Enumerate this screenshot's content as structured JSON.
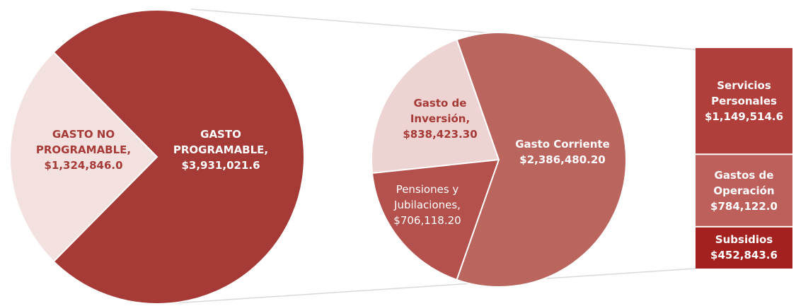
{
  "chart_data": [
    {
      "type": "pie",
      "categories": [
        "GASTO NO PROGRAMABLE,",
        "GASTO PROGRAMABLE,"
      ],
      "values": [
        1324846.0,
        3931021.6
      ],
      "value_labels": [
        "$1,324,846.0",
        "$3,931,021.6"
      ],
      "colors": [
        "#f3e1e0",
        "#a53a36"
      ]
    },
    {
      "type": "pie",
      "categories": [
        "Gasto de Inversión,",
        "Pensiones y Jubilaciones,",
        "Gasto Corriente"
      ],
      "values": [
        838423.3,
        706118.2,
        2386480.2
      ],
      "value_labels": [
        "$838,423.30",
        "$706,118.20",
        "$2,386,480.20"
      ],
      "colors": [
        "#edd3d1",
        "#b5514d",
        "#bb655f"
      ]
    },
    {
      "type": "bar",
      "stacked": true,
      "categories": [
        "Servicios Personales",
        "Gastos de Operación",
        "Subsidios"
      ],
      "values": [
        1149514.6,
        784122.0,
        452843.6
      ],
      "value_labels": [
        "$1,149,514.6",
        "$784,122.0",
        "$452,843.6"
      ],
      "colors": [
        "#b03e3a",
        "#bd5f5a",
        "#a3221f"
      ]
    }
  ]
}
